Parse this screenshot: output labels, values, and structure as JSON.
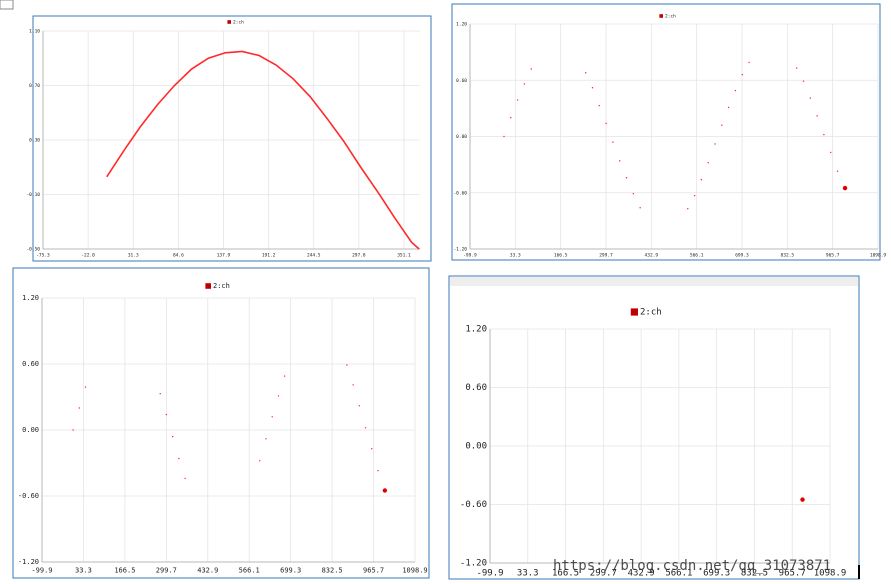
{
  "chart_data": [
    {
      "type": "line",
      "legend": "top",
      "grid": true,
      "series": [
        {
          "name": "2:ch",
          "color": "#ff2a2a",
          "x": [
            0,
            20,
            40,
            60,
            80,
            100,
            120,
            140,
            160,
            180,
            200,
            220,
            240,
            260,
            280,
            300,
            320,
            340,
            360,
            369
          ],
          "values": [
            0.03,
            0.22,
            0.4,
            0.56,
            0.7,
            0.82,
            0.9,
            0.94,
            0.95,
            0.92,
            0.85,
            0.75,
            0.62,
            0.46,
            0.29,
            0.1,
            -0.08,
            -0.27,
            -0.45,
            -0.5
          ]
        }
      ],
      "xlim": [
        -75.3,
        370
      ],
      "xticks": [
        -75.3,
        {
          "value": -22.0,
          "label": "-22.0"
        },
        31.3,
        84.6,
        137.9,
        191.2,
        244.5,
        297.8,
        351.1
      ],
      "ylim": [
        -0.5,
        1.1
      ],
      "yticks": [
        {
          "value": 1.1,
          "label": "1.10"
        },
        {
          "value": 0.7,
          "label": "0.70"
        },
        {
          "value": 0.3,
          "label": "0.30"
        },
        {
          "value": -0.1,
          "label": "-0.10"
        },
        {
          "value": -0.5,
          "label": "-0.50"
        }
      ]
    },
    {
      "type": "scatter",
      "legend": "top",
      "grid": true,
      "end_marker": true,
      "series": [
        {
          "name": "2:ch",
          "color": "#ff2a2a",
          "x": [
            0,
            20,
            40,
            60,
            80,
            240,
            260,
            280,
            300,
            320,
            340,
            360,
            380,
            400,
            540,
            560,
            580,
            600,
            620,
            640,
            660,
            680,
            700,
            720,
            860,
            880,
            900,
            920,
            940,
            960,
            980,
            1002
          ],
          "values": [
            0.0,
            0.2,
            0.39,
            0.56,
            0.72,
            0.68,
            0.52,
            0.33,
            0.14,
            -0.06,
            -0.26,
            -0.44,
            -0.61,
            -0.76,
            -0.77,
            -0.63,
            -0.46,
            -0.28,
            -0.08,
            0.12,
            0.31,
            0.49,
            0.66,
            0.79,
            0.73,
            0.59,
            0.41,
            0.22,
            0.02,
            -0.17,
            -0.37,
            -0.55
          ]
        }
      ],
      "xlim": [
        -99.9,
        1098.9
      ],
      "xticks": [
        -99.9,
        33.3,
        166.5,
        299.7,
        432.9,
        566.1,
        699.3,
        832.5,
        965.7,
        1098.9
      ],
      "ylim": [
        -1.2,
        1.2
      ],
      "yticks": [
        {
          "value": 1.2,
          "label": "1.20"
        },
        {
          "value": 0.6,
          "label": "0.60"
        },
        {
          "value": 0,
          "label": "0.00"
        },
        {
          "value": -0.6,
          "label": "-0.60"
        },
        {
          "value": -1.2,
          "label": "-1.20"
        }
      ]
    },
    {
      "type": "scatter",
      "legend": "top",
      "grid": true,
      "end_marker": true,
      "series": [
        {
          "name": "2:ch",
          "color": "#ff2a2a",
          "x": [
            0,
            20,
            40,
            280,
            300,
            320,
            340,
            360,
            600,
            620,
            640,
            660,
            680,
            880,
            900,
            920,
            940,
            960,
            980,
            1002
          ],
          "values": [
            0.0,
            0.2,
            0.39,
            0.33,
            0.14,
            -0.06,
            -0.26,
            -0.44,
            -0.28,
            -0.08,
            0.12,
            0.31,
            0.49,
            0.59,
            0.41,
            0.22,
            0.02,
            -0.17,
            -0.37,
            -0.55
          ]
        }
      ],
      "xlim": [
        -99.9,
        1098.9
      ],
      "xticks": [
        -99.9,
        33.3,
        166.5,
        299.7,
        432.9,
        566.1,
        699.3,
        832.5,
        965.7,
        1098.9
      ],
      "ylim": [
        -1.2,
        1.2
      ],
      "yticks": [
        {
          "value": 1.2,
          "label": "1.20"
        },
        {
          "value": 0.6,
          "label": "0.60"
        },
        {
          "value": 0,
          "label": "0.00"
        },
        {
          "value": -0.6,
          "label": "-0.60"
        },
        {
          "value": -1.2,
          "label": "-1.20"
        }
      ]
    },
    {
      "type": "scatter",
      "legend": "top",
      "grid": true,
      "end_marker": true,
      "series": [
        {
          "name": "2:ch",
          "color": "#ff2a2a",
          "x": [
            1002
          ],
          "values": [
            -0.55
          ]
        }
      ],
      "xlim": [
        -99.9,
        1098.9
      ],
      "xticks": [
        -99.9,
        33.3,
        166.5,
        299.7,
        432.9,
        566.1,
        699.3,
        832.5,
        965.7,
        1098.9
      ],
      "ylim": [
        -1.2,
        1.2
      ],
      "yticks": [
        {
          "value": 1.2,
          "label": "1.20"
        },
        {
          "value": 0.6,
          "label": "0.60"
        },
        {
          "value": 0,
          "label": "0.00"
        },
        {
          "value": -0.6,
          "label": "-0.60"
        },
        {
          "value": -1.2,
          "label": "-1.20"
        }
      ]
    }
  ],
  "watermark": "https://blog.csdn.net/qq_31073871"
}
